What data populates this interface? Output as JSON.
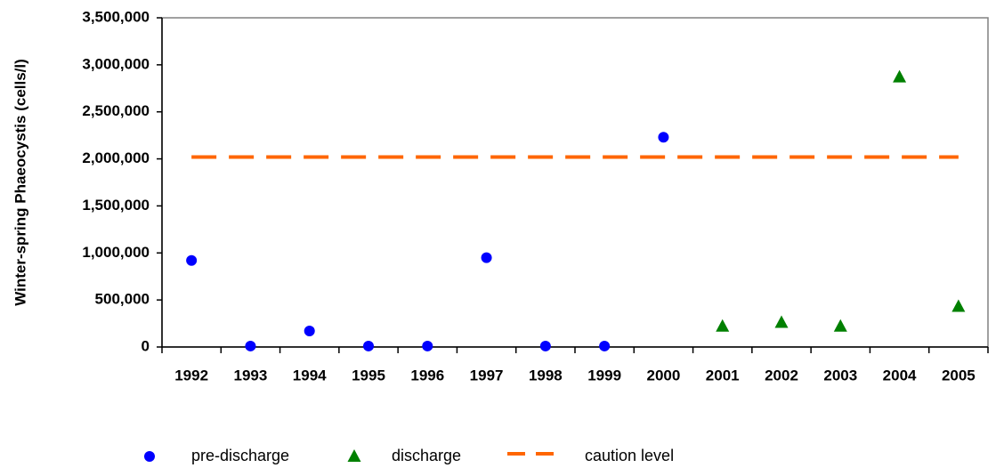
{
  "chart_data": {
    "type": "scatter",
    "categories": [
      "1992",
      "1993",
      "1994",
      "1995",
      "1996",
      "1997",
      "1998",
      "1999",
      "2000",
      "2001",
      "2002",
      "2003",
      "2004",
      "2005"
    ],
    "y_label": "Winter-spring Phaeocystis (cells/l)",
    "series": [
      {
        "name": "pre-discharge",
        "color": "#0000ff",
        "marker": "circle",
        "values": [
          920000,
          10000,
          170000,
          10000,
          10000,
          950000,
          10000,
          10000,
          2230000,
          null,
          null,
          null,
          null,
          null
        ]
      },
      {
        "name": "discharge",
        "color": "#008000",
        "marker": "triangle",
        "values": [
          null,
          null,
          null,
          null,
          null,
          null,
          null,
          null,
          null,
          220000,
          260000,
          220000,
          2870000,
          430000
        ]
      },
      {
        "name": "caution level",
        "color": "#ff6600",
        "marker": "dash",
        "values": [
          2020000,
          2020000,
          2020000,
          2020000,
          2020000,
          2020000,
          2020000,
          2020000,
          2020000,
          2020000,
          2020000,
          2020000,
          2020000,
          2020000
        ]
      }
    ],
    "ylim": [
      0,
      3500000
    ],
    "yticks": [
      0,
      {
        "value": 500000,
        "label": "500,000"
      },
      {
        "value": 1000000,
        "label": "1,000,000"
      },
      {
        "value": 1500000,
        "label": "1,500,000"
      },
      {
        "value": 2000000,
        "label": "2,000,000"
      },
      {
        "value": 2500000,
        "label": "2,500,000"
      },
      {
        "value": 3000000,
        "label": "3,000,000"
      },
      {
        "value": 3500000,
        "label": "3,500,000"
      }
    ],
    "grid": false,
    "legend": "bottom"
  }
}
